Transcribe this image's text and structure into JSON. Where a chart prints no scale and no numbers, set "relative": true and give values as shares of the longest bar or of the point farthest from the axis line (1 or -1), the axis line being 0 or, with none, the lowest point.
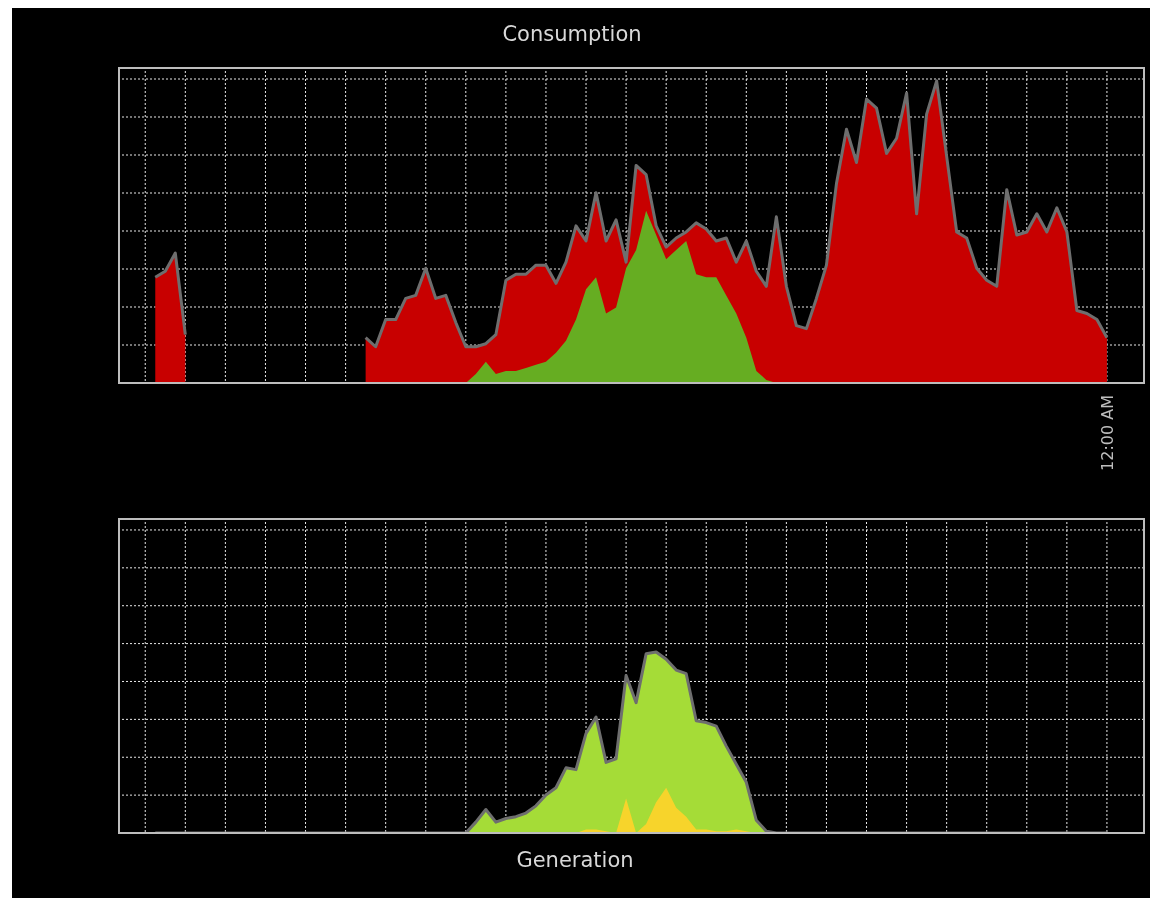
{
  "chart_data": [
    {
      "type": "area",
      "title": "Consumption",
      "relative": true,
      "grid": true,
      "annotations": [
        "12:00 AM"
      ],
      "categories": [
        null,
        null,
        null,
        null,
        null,
        null,
        null,
        null,
        null,
        null,
        null,
        null,
        null,
        null,
        null,
        null,
        null,
        null,
        null,
        null,
        null,
        null,
        null,
        null,
        null,
        null,
        null,
        null,
        null,
        null,
        null,
        null,
        null,
        null,
        null,
        null,
        null,
        null,
        null,
        null,
        null,
        null,
        null,
        null,
        null,
        null,
        null,
        null,
        null,
        null,
        null,
        null,
        null,
        null,
        null,
        null,
        null,
        null,
        null,
        null,
        null,
        null,
        null,
        null,
        null,
        null,
        null,
        null,
        null,
        null,
        null,
        null,
        null,
        null,
        null,
        null,
        null,
        null,
        null,
        null,
        null,
        null,
        null,
        null,
        null,
        null,
        null,
        null,
        null,
        null,
        null,
        null,
        null,
        null,
        null,
        null
      ],
      "series": [
        {
          "color": "#c80000",
          "values": [
            0.35,
            0.37,
            0.43,
            0.16,
            null,
            null,
            null,
            null,
            null,
            null,
            null,
            null,
            null,
            null,
            null,
            null,
            null,
            null,
            null,
            null,
            null,
            0.15,
            0.12,
            0.21,
            0.21,
            0.28,
            0.29,
            0.38,
            0.28,
            0.29,
            0.2,
            0.12,
            0.12,
            0.13,
            0.16,
            0.34,
            0.36,
            0.36,
            0.39,
            0.39,
            0.33,
            0.4,
            0.52,
            0.47,
            0.63,
            0.47,
            0.54,
            0.4,
            0.72,
            0.69,
            0.52,
            0.45,
            0.48,
            0.5,
            0.53,
            0.51,
            0.47,
            0.48,
            0.4,
            0.47,
            0.37,
            0.32,
            0.55,
            0.32,
            0.19,
            0.18,
            0.28,
            0.39,
            0.66,
            0.84,
            0.73,
            0.94,
            0.91,
            0.76,
            0.81,
            0.96,
            0.56,
            0.89,
            1,
            0.75,
            0.5,
            0.48,
            0.38,
            0.34,
            0.32,
            0.64,
            0.49,
            0.5,
            0.56,
            0.5,
            0.58,
            0.5,
            0.24,
            0.23,
            0.21,
            0.15
          ]
        },
        {
          "color": "#66ad22",
          "values": [
            null,
            null,
            null,
            null,
            null,
            null,
            null,
            null,
            null,
            null,
            null,
            null,
            null,
            null,
            null,
            null,
            null,
            null,
            null,
            null,
            null,
            null,
            null,
            null,
            null,
            null,
            null,
            null,
            null,
            null,
            null,
            0,
            0.03,
            0.07,
            0.03,
            0.04,
            0.04,
            0.05,
            0.06,
            0.07,
            0.1,
            0.14,
            0.21,
            0.31,
            0.35,
            0.23,
            0.25,
            0.38,
            0.44,
            0.57,
            0.49,
            0.41,
            0.44,
            0.47,
            0.36,
            0.35,
            0.35,
            0.29,
            0.23,
            0.15,
            0.04,
            0.01,
            0,
            null,
            null,
            null,
            null,
            null,
            null,
            null,
            null,
            null,
            null,
            null,
            null,
            null,
            null,
            null,
            null,
            null,
            null,
            null,
            null,
            null,
            null,
            null,
            null,
            null,
            null,
            null,
            null,
            null,
            null,
            null,
            null,
            null
          ]
        }
      ]
    },
    {
      "type": "area",
      "title": "Generation",
      "relative": true,
      "grid": true,
      "categories": [
        null,
        null,
        null,
        null,
        null,
        null,
        null,
        null,
        null,
        null,
        null,
        null,
        null,
        null,
        null,
        null,
        null,
        null,
        null,
        null,
        null,
        null,
        null,
        null,
        null,
        null,
        null,
        null,
        null,
        null,
        null,
        null,
        null,
        null,
        null,
        null,
        null,
        null,
        null,
        null,
        null,
        null,
        null,
        null,
        null,
        null,
        null,
        null,
        null,
        null,
        null,
        null,
        null,
        null,
        null,
        null,
        null,
        null,
        null,
        null,
        null,
        null,
        null,
        null,
        null,
        null,
        null,
        null,
        null,
        null,
        null,
        null,
        null,
        null,
        null,
        null,
        null,
        null,
        null,
        null,
        null,
        null,
        null,
        null,
        null,
        null,
        null,
        null,
        null,
        null,
        null,
        null,
        null,
        null,
        null,
        null
      ],
      "series": [
        {
          "color": "#a5dc37",
          "values": [
            0,
            0,
            0,
            0,
            0,
            0,
            0,
            0,
            0,
            0,
            0,
            0,
            0,
            0,
            0,
            0,
            0,
            0,
            0,
            0,
            0,
            0,
            0,
            0,
            0,
            0,
            0,
            0,
            0,
            0,
            0,
            0,
            0.06,
            0.13,
            0.06,
            0.08,
            0.09,
            0.11,
            0.15,
            0.21,
            0.25,
            0.36,
            0.35,
            0.55,
            0.64,
            0.39,
            0.41,
            0.87,
            0.72,
            0.99,
            1,
            0.96,
            0.9,
            0.88,
            0.62,
            0.61,
            0.59,
            0.48,
            0.38,
            0.28,
            0.07,
            0.01,
            0,
            0,
            0,
            0,
            0,
            0,
            0,
            0,
            0,
            0,
            0,
            0,
            0,
            0,
            0,
            0,
            0,
            0,
            0,
            0,
            0,
            0,
            0,
            0,
            0,
            0,
            0,
            0,
            0,
            0,
            0,
            0,
            0,
            0
          ]
        },
        {
          "color": "#f7d42b",
          "values": [
            null,
            null,
            null,
            null,
            null,
            null,
            null,
            null,
            null,
            null,
            null,
            null,
            null,
            null,
            null,
            null,
            null,
            null,
            null,
            null,
            null,
            null,
            null,
            null,
            null,
            null,
            null,
            null,
            null,
            null,
            null,
            null,
            null,
            null,
            null,
            null,
            null,
            null,
            null,
            null,
            null,
            null,
            0,
            0.02,
            0.02,
            0.01,
            0,
            0.19,
            0,
            0.05,
            0.17,
            0.25,
            0.14,
            0.09,
            0.02,
            0.02,
            0.01,
            0.01,
            0.02,
            0.01,
            0,
            null,
            null,
            null,
            null,
            null,
            null,
            null,
            null,
            null,
            null,
            null,
            null,
            null,
            null,
            null,
            null,
            null,
            null,
            null,
            null,
            null,
            null,
            null,
            null,
            null,
            null,
            null,
            null,
            null,
            null,
            null,
            null,
            null,
            null,
            null
          ]
        }
      ]
    }
  ]
}
